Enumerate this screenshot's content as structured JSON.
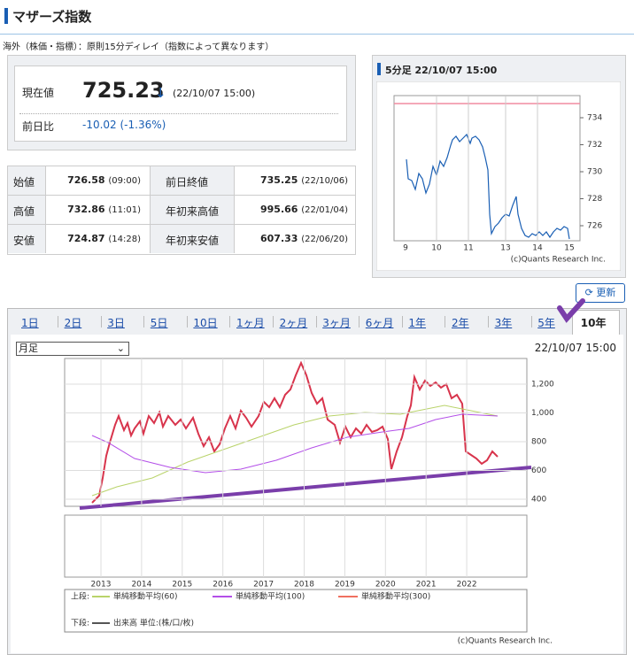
{
  "header": {
    "title": "マザーズ指数",
    "notice": "海外（株価・指標）：原則15分ディレイ（指数によって異なります）"
  },
  "price": {
    "label": "現在値",
    "value": "725.23",
    "arrow": "↓",
    "time": "(22/10/07 15:00)",
    "change_label": "前日比",
    "change": "-10.02 (-1.36%)"
  },
  "table": {
    "rows": [
      [
        "始値",
        "726.58",
        "(09:00)",
        "前日終値",
        "735.25",
        "(22/10/06)"
      ],
      [
        "高値",
        "732.86",
        "(11:01)",
        "年初来高値",
        "995.66",
        "(22/01/04)"
      ],
      [
        "安値",
        "724.87",
        "(14:28)",
        "年初来安値",
        "607.33",
        "(22/06/20)"
      ]
    ]
  },
  "mini_chart": {
    "title": "5分足 22/10/07 15:00",
    "yticks": [
      "734",
      "732",
      "730",
      "728",
      "726"
    ],
    "xticks": [
      "9",
      "10",
      "11",
      "13",
      "14",
      "15"
    ],
    "credit": "(c)Quants Research Inc."
  },
  "refresh": "更新",
  "tabs": [
    "1日",
    "2日",
    "3日",
    "5日",
    "10日",
    "1ヶ月",
    "2ヶ月",
    "3ヶ月",
    "6ヶ月",
    "1年",
    "2年",
    "3年",
    "5年",
    "10年"
  ],
  "main_chart": {
    "select": "月足",
    "timestamp": "22/10/07 15:00",
    "yticks": [
      "1,200",
      "1,000",
      "800",
      "600",
      "400"
    ],
    "xticks": [
      "2013",
      "2014",
      "2015",
      "2016",
      "2017",
      "2018",
      "2019",
      "2020",
      "2021",
      "2022"
    ],
    "legend": {
      "upper": "上段:",
      "ma60": "単純移動平均(60)",
      "ma100": "単純移動平均(100)",
      "ma300": "単純移動平均(300)",
      "lower": "下段:",
      "volume": "出来高 単位:(株/口/枚)"
    },
    "credit": "(c)Quants Research Inc."
  }
}
